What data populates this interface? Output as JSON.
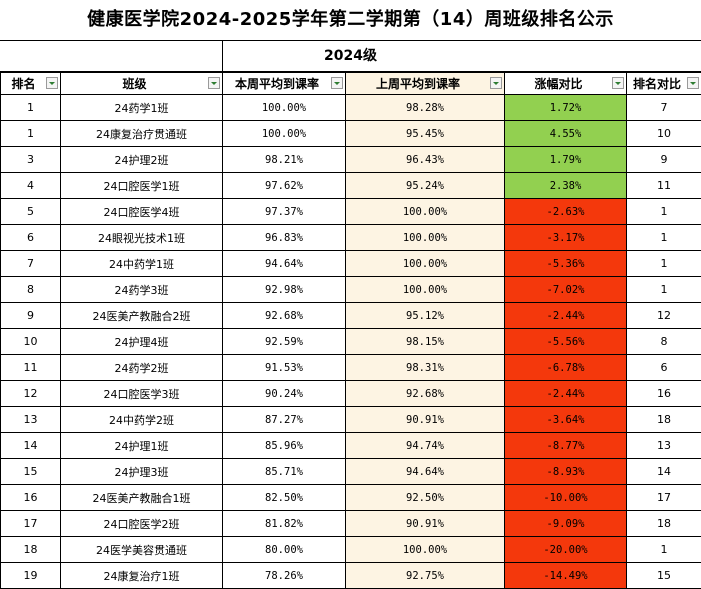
{
  "title": "健康医学院2024-2025学年第二学期第（14）周班级排名公示",
  "grade": "2024级",
  "columns": [
    "排名",
    "班级",
    "本周平均到课率",
    "上周平均到课率",
    "涨幅对比",
    "排名对比"
  ],
  "colors": {
    "up": "#92d050",
    "down": "#f4380c",
    "prev_col": "#fdf4e3"
  },
  "rows": [
    {
      "rank": "1",
      "class": "24药学1班",
      "this_week": "100.00%",
      "last_week": "98.28%",
      "change": "1.72%",
      "trend": "up",
      "rank_cmp": "7"
    },
    {
      "rank": "1",
      "class": "24康复治疗贯通班",
      "this_week": "100.00%",
      "last_week": "95.45%",
      "change": "4.55%",
      "trend": "up",
      "rank_cmp": "10"
    },
    {
      "rank": "3",
      "class": "24护理2班",
      "this_week": "98.21%",
      "last_week": "96.43%",
      "change": "1.79%",
      "trend": "up",
      "rank_cmp": "9"
    },
    {
      "rank": "4",
      "class": "24口腔医学1班",
      "this_week": "97.62%",
      "last_week": "95.24%",
      "change": "2.38%",
      "trend": "up",
      "rank_cmp": "11"
    },
    {
      "rank": "5",
      "class": "24口腔医学4班",
      "this_week": "97.37%",
      "last_week": "100.00%",
      "change": "-2.63%",
      "trend": "down",
      "rank_cmp": "1"
    },
    {
      "rank": "6",
      "class": "24眼视光技术1班",
      "this_week": "96.83%",
      "last_week": "100.00%",
      "change": "-3.17%",
      "trend": "down",
      "rank_cmp": "1"
    },
    {
      "rank": "7",
      "class": "24中药学1班",
      "this_week": "94.64%",
      "last_week": "100.00%",
      "change": "-5.36%",
      "trend": "down",
      "rank_cmp": "1"
    },
    {
      "rank": "8",
      "class": "24药学3班",
      "this_week": "92.98%",
      "last_week": "100.00%",
      "change": "-7.02%",
      "trend": "down",
      "rank_cmp": "1"
    },
    {
      "rank": "9",
      "class": "24医美产教融合2班",
      "this_week": "92.68%",
      "last_week": "95.12%",
      "change": "-2.44%",
      "trend": "down",
      "rank_cmp": "12"
    },
    {
      "rank": "10",
      "class": "24护理4班",
      "this_week": "92.59%",
      "last_week": "98.15%",
      "change": "-5.56%",
      "trend": "down",
      "rank_cmp": "8"
    },
    {
      "rank": "11",
      "class": "24药学2班",
      "this_week": "91.53%",
      "last_week": "98.31%",
      "change": "-6.78%",
      "trend": "down",
      "rank_cmp": "6"
    },
    {
      "rank": "12",
      "class": "24口腔医学3班",
      "this_week": "90.24%",
      "last_week": "92.68%",
      "change": "-2.44%",
      "trend": "down",
      "rank_cmp": "16"
    },
    {
      "rank": "13",
      "class": "24中药学2班",
      "this_week": "87.27%",
      "last_week": "90.91%",
      "change": "-3.64%",
      "trend": "down",
      "rank_cmp": "18"
    },
    {
      "rank": "14",
      "class": "24护理1班",
      "this_week": "85.96%",
      "last_week": "94.74%",
      "change": "-8.77%",
      "trend": "down",
      "rank_cmp": "13"
    },
    {
      "rank": "15",
      "class": "24护理3班",
      "this_week": "85.71%",
      "last_week": "94.64%",
      "change": "-8.93%",
      "trend": "down",
      "rank_cmp": "14"
    },
    {
      "rank": "16",
      "class": "24医美产教融合1班",
      "this_week": "82.50%",
      "last_week": "92.50%",
      "change": "-10.00%",
      "trend": "down",
      "rank_cmp": "17"
    },
    {
      "rank": "17",
      "class": "24口腔医学2班",
      "this_week": "81.82%",
      "last_week": "90.91%",
      "change": "-9.09%",
      "trend": "down",
      "rank_cmp": "18"
    },
    {
      "rank": "18",
      "class": "24医学美容贯通班",
      "this_week": "80.00%",
      "last_week": "100.00%",
      "change": "-20.00%",
      "trend": "down",
      "rank_cmp": "1"
    },
    {
      "rank": "19",
      "class": "24康复治疗1班",
      "this_week": "78.26%",
      "last_week": "92.75%",
      "change": "-14.49%",
      "trend": "down",
      "rank_cmp": "15"
    }
  ]
}
